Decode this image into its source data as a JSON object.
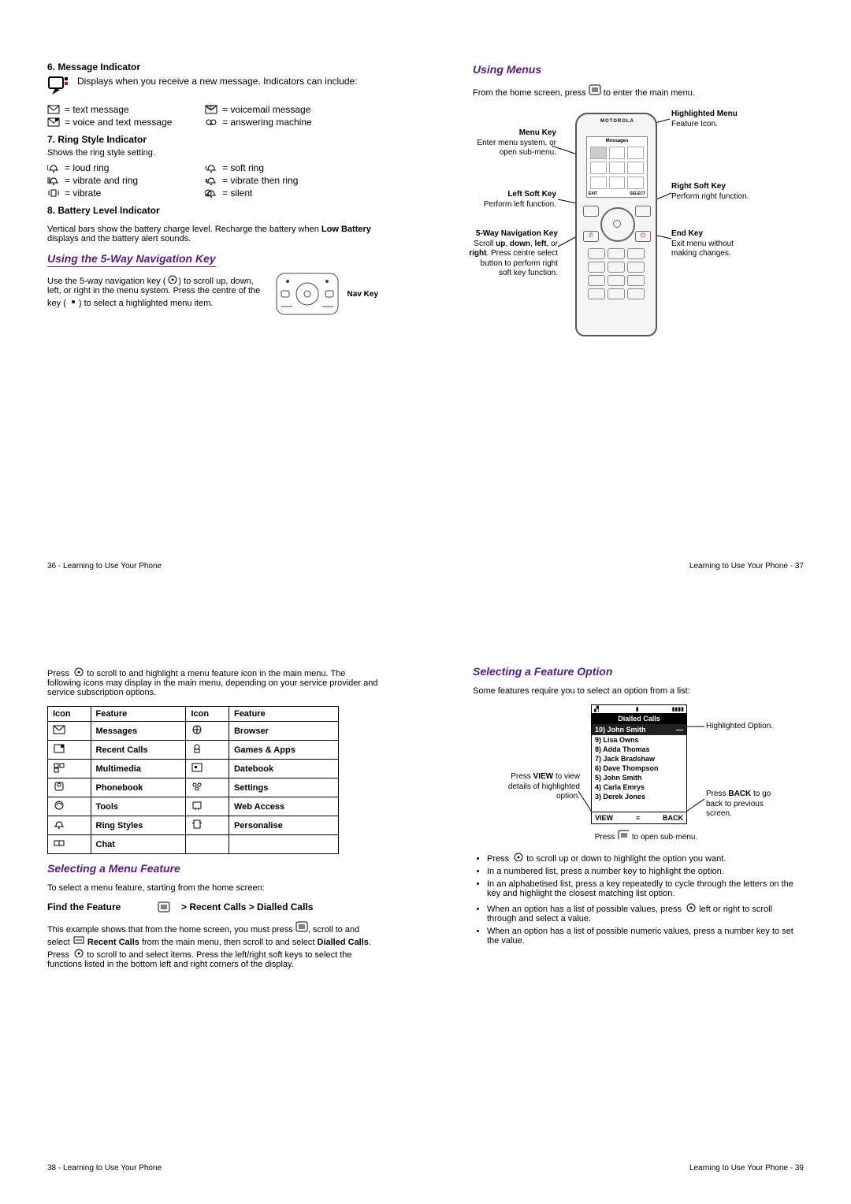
{
  "p36": {
    "h6": "6. Message Indicator",
    "msg_text": "Displays when you receive a new message. Indicators can include:",
    "indicators": {
      "a1": "= text message",
      "a2": "= voicemail message",
      "b1": "= voice and text message",
      "b2": "= answering machine"
    },
    "h7": "7. Ring Style Indicator",
    "h7_sub": "Shows the ring style setting.",
    "rings": {
      "a1": "= loud ring",
      "a2": "= soft ring",
      "b1": "= vibrate and ring",
      "b2": "= vibrate then ring",
      "c1": "= vibrate",
      "c2": "= silent"
    },
    "h8": "8. Battery Level Indicator",
    "h8_text": "Vertical bars show the battery charge level. Recharge the battery when ",
    "h8_bold": "Low Battery",
    "h8_text2": " displays and the battery alert sounds.",
    "nav_h": "Using the 5-Way Navigation Key",
    "nav_text_a": "Use the 5-way navigation key (",
    "nav_text_b": ") to scroll up, down, left, or right in the menu system. Press the centre of the key (",
    "nav_text_c": ") to select a highlighted menu item.",
    "nav_label": "Nav Key",
    "footer": "36 - Learning to Use Your Phone"
  },
  "p37": {
    "h": "Using Menus",
    "intro_a": "From the home screen, press ",
    "intro_b": " to enter the main menu.",
    "callouts": {
      "hl": {
        "t": "Highlighted Menu",
        "s": "Feature Icon."
      },
      "menu": {
        "t": "Menu Key",
        "s": "Enter menu system, or open sub-menu."
      },
      "rsk": {
        "t": "Right Soft Key",
        "s": "Perform right function."
      },
      "lsk": {
        "t": "Left Soft Key",
        "s": "Perform left function."
      },
      "nav": {
        "t": "5-Way Navigation Key",
        "s": "Scroll up, down, left, or right. Press centre select button to perform right soft key function."
      },
      "end": {
        "t": "End Key",
        "s": "Exit menu without making changes."
      }
    },
    "footer": "Learning to Use Your Phone - 37"
  },
  "p38": {
    "intro": "Press  S  to scroll to and highlight a menu feature icon in the main menu. The following icons may display in the main menu, depending on your service provider and service subscription options.",
    "th": {
      "icon": "Icon",
      "feature": "Feature"
    },
    "rows": [
      {
        "f1": "Messages",
        "f2": "Browser"
      },
      {
        "f1": "Recent Calls",
        "f2": "Games & Apps"
      },
      {
        "f1": "Multimedia",
        "f2": "Datebook"
      },
      {
        "f1": "Phonebook",
        "f2": "Settings"
      },
      {
        "f1": "Tools",
        "f2": "Web Access"
      },
      {
        "f1": "Ring Styles",
        "f2": "Personalise"
      },
      {
        "f1": "Chat",
        "f2": ""
      }
    ],
    "sel_h": "Selecting a Menu Feature",
    "sel_p": "To select a menu feature, starting from the home screen:",
    "find": "Find the Feature",
    "path_a": "> Recent Calls > Dialled Calls",
    "para_a": "This example shows that from the home screen, you must press ",
    "para_b": ", scroll to and select ",
    "rc": "Recent Calls",
    "para_c": " from the main menu, then scroll to and select ",
    "dc": "Dialled Calls",
    "para_d": ". Press  S  to scroll to and select items. Press the left/right soft keys to select the functions listed in the bottom left and right corners of the display.",
    "footer": "38 - Learning to Use Your Phone"
  },
  "p39": {
    "h": "Selecting a Feature Option",
    "intro": "Some features require you to select an option from a list:",
    "screen": {
      "title": "Dialled Calls",
      "hl": "10) John Smith",
      "items": [
        "9) Lisa Owns",
        "8) Adda Thomas",
        "7) Jack Bradshaw",
        "6) Dave Thompson",
        "5) John Smith",
        "4) Carla Emrys",
        "3) Derek Jones"
      ],
      "left": "VIEW",
      "right": "BACK"
    },
    "c_hl": "Highlighted Option.",
    "c_view_a": "Press ",
    "c_view_b": "VIEW",
    "c_view_c": " to view details of highlighted option.",
    "c_back_a": "Press ",
    "c_back_b": "BACK",
    "c_back_c": " to go back to previous screen.",
    "sub_a": "Press ",
    "sub_b": " to open sub-menu.",
    "bullets": [
      "Press  S  to scroll up or down to highlight the option you want.",
      "In a numbered list, press a number key to highlight the option.",
      "In an alphabetised list, press a key repeatedly to cycle through the letters on the key and highlight the closest matching list option.",
      "When an option has a list of possible values, press  S  left or right to scroll through and select a value.",
      "When an option has a list of possible numeric values, press a number key to set the value."
    ],
    "footer": "Learning to Use Your Phone - 39"
  }
}
